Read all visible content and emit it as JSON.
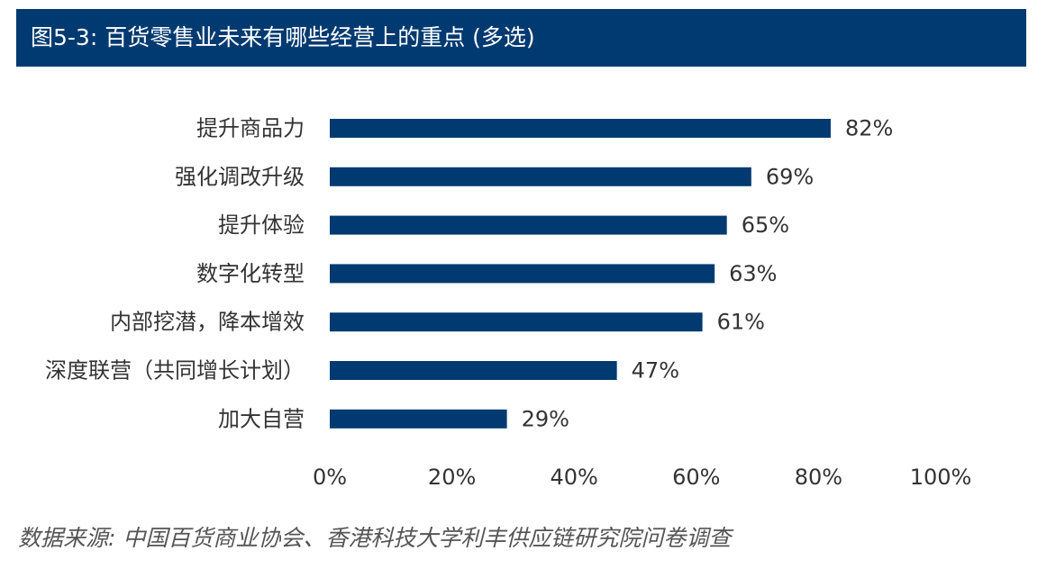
{
  "title": "图5-3: 百货零售业未来有哪些经营上的重点 (多选)",
  "source": "数据来源: 中国百货商业协会、香港科技大学利丰供应链研究院问卷调查",
  "colors": {
    "bar": "#003a70",
    "title_bg": "#003a70",
    "text": "#333333"
  },
  "chart_data": {
    "type": "bar",
    "orientation": "horizontal",
    "categories": [
      "提升商品力",
      "强化调改升级",
      "提升体验",
      "数字化转型",
      "内部挖潜，降本增效",
      "深度联营（共同增长计划）",
      "加大自营"
    ],
    "values": [
      82,
      69,
      65,
      63,
      61,
      47,
      29
    ],
    "value_labels": [
      "82%",
      "69%",
      "65%",
      "63%",
      "61%",
      "47%",
      "29%"
    ],
    "xlim": [
      0,
      100
    ],
    "x_ticks": [
      "0%",
      "20%",
      "40%",
      "60%",
      "80%",
      "100%"
    ],
    "grid": false,
    "legend": false
  }
}
